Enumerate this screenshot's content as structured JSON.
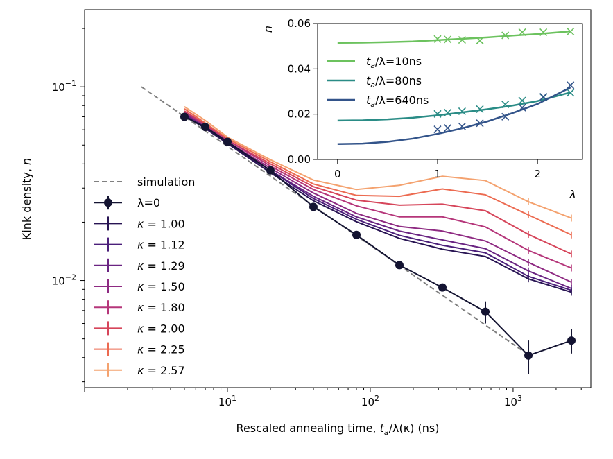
{
  "chart_data": [
    {
      "type": "line",
      "scale": {
        "x": "log",
        "y": "log"
      },
      "xlabel_main": "Rescaled annealing time, ",
      "xlabel_math": "t",
      "xlabel_sub": "a",
      "xlabel_rest": "/λ(κ) (ns)",
      "ylabel_main": "Kink density, ",
      "ylabel_math": "n",
      "xlim": [
        1.0,
        3500
      ],
      "ylim": [
        0.0028,
        0.25
      ],
      "x_ticks": [
        {
          "value": 10,
          "base": "10",
          "exp": "1"
        },
        {
          "value": 100,
          "base": "10",
          "exp": "2"
        },
        {
          "value": 1000,
          "base": "10",
          "exp": "3"
        }
      ],
      "y_ticks": [
        {
          "value": 0.01,
          "base": "10",
          "exp": "−2"
        },
        {
          "value": 0.1,
          "base": "10",
          "exp": "−1"
        }
      ],
      "legend_position": "lower-left",
      "legend": [
        {
          "key": "sim",
          "prefix": "simulation",
          "value": ""
        },
        {
          "key": "lambda0",
          "prefix": "λ=0",
          "value": ""
        },
        {
          "key": "k100",
          "prefix": "κ = ",
          "value": "1.00"
        },
        {
          "key": "k112",
          "prefix": "κ = ",
          "value": "1.12"
        },
        {
          "key": "k129",
          "prefix": "κ = ",
          "value": "1.29"
        },
        {
          "key": "k150",
          "prefix": "κ = ",
          "value": "1.50"
        },
        {
          "key": "k180",
          "prefix": "κ = ",
          "value": "1.80"
        },
        {
          "key": "k200",
          "prefix": "κ = ",
          "value": "2.00"
        },
        {
          "key": "k225",
          "prefix": "κ = ",
          "value": "2.25"
        },
        {
          "key": "k257",
          "prefix": "κ = ",
          "value": "2.57"
        }
      ],
      "series": [
        {
          "key": "sim",
          "style": "dashed",
          "color": "#808080",
          "x": [
            2.5,
            1300
          ],
          "y": [
            0.1,
            0.0041
          ]
        },
        {
          "key": "k257",
          "style": "solid",
          "color": "#f4a26f",
          "x": [
            5,
            7,
            10,
            20,
            40,
            80,
            160,
            320,
            640,
            1280,
            2560
          ],
          "y": [
            0.079,
            0.067,
            0.055,
            0.042,
            0.033,
            0.0295,
            0.031,
            0.0345,
            0.0328,
            0.0255,
            0.021
          ]
        },
        {
          "key": "k225",
          "style": "solid",
          "color": "#ec6a50",
          "x": [
            5,
            7,
            10,
            20,
            40,
            80,
            160,
            320,
            640,
            1280,
            2560
          ],
          "y": [
            0.077,
            0.065,
            0.054,
            0.041,
            0.0315,
            0.0275,
            0.0272,
            0.0297,
            0.0277,
            0.0218,
            0.0172
          ]
        },
        {
          "key": "k200",
          "style": "solid",
          "color": "#d6455a",
          "x": [
            5,
            7,
            10,
            20,
            40,
            80,
            160,
            320,
            640,
            1280,
            2560
          ],
          "y": [
            0.075,
            0.064,
            0.053,
            0.04,
            0.0305,
            0.026,
            0.0245,
            0.0248,
            0.0229,
            0.0173,
            0.0137
          ]
        },
        {
          "key": "k180",
          "style": "solid",
          "color": "#b5367a",
          "x": [
            5,
            7,
            10,
            20,
            40,
            80,
            160,
            320,
            640,
            1280,
            2560
          ],
          "y": [
            0.074,
            0.063,
            0.053,
            0.039,
            0.0295,
            0.0243,
            0.0213,
            0.0213,
            0.0189,
            0.0143,
            0.0116
          ]
        },
        {
          "key": "k150",
          "style": "solid",
          "color": "#8e2a82",
          "x": [
            5,
            7,
            10,
            20,
            40,
            80,
            160,
            320,
            640,
            1280,
            2560
          ],
          "y": [
            0.073,
            0.062,
            0.052,
            0.038,
            0.0283,
            0.0222,
            0.019,
            0.018,
            0.016,
            0.0124,
            0.0098
          ]
        },
        {
          "key": "k129",
          "style": "solid",
          "color": "#6a2482",
          "x": [
            5,
            7,
            10,
            20,
            40,
            80,
            160,
            320,
            640,
            1280,
            2560
          ],
          "y": [
            0.072,
            0.062,
            0.052,
            0.037,
            0.0272,
            0.0213,
            0.018,
            0.0162,
            0.0146,
            0.0112,
            0.0091
          ]
        },
        {
          "key": "k112",
          "style": "solid",
          "color": "#4b1f7a",
          "x": [
            5,
            7,
            10,
            20,
            40,
            80,
            160,
            320,
            640,
            1280,
            2560
          ],
          "y": [
            0.071,
            0.061,
            0.051,
            0.037,
            0.0265,
            0.0207,
            0.0171,
            0.0152,
            0.0139,
            0.0105,
            0.0089
          ]
        },
        {
          "key": "k100",
          "style": "solid",
          "color": "#281453",
          "x": [
            5,
            7,
            10,
            20,
            40,
            80,
            160,
            320,
            640,
            1280,
            2560
          ],
          "y": [
            0.071,
            0.061,
            0.051,
            0.036,
            0.0258,
            0.0201,
            0.0165,
            0.0145,
            0.0133,
            0.0102,
            0.0087
          ]
        },
        {
          "key": "lambda0",
          "style": "markers",
          "color": "#141432",
          "x": [
            5,
            7,
            10,
            20,
            40,
            80,
            160,
            320,
            640,
            1280,
            2560
          ],
          "y": [
            0.07,
            0.062,
            0.052,
            0.037,
            0.024,
            0.0172,
            0.012,
            0.0092,
            0.0069,
            0.0041,
            0.0049
          ],
          "err": [
            0.0012,
            0.001,
            0.0008,
            0.0006,
            0.0005,
            0.0004,
            0.0003,
            0.0003,
            0.0009,
            0.0008,
            0.0007
          ]
        }
      ]
    },
    {
      "type": "line",
      "role": "inset",
      "xlabel": "λ",
      "ylabel": "n",
      "xlim": [
        -0.2,
        2.45
      ],
      "ylim": [
        0.0,
        0.06
      ],
      "x_ticks": [
        "0",
        "1",
        "2"
      ],
      "x_tick_values": [
        0,
        1,
        2
      ],
      "y_ticks": [
        "0.00",
        "0.02",
        "0.04",
        "0.06"
      ],
      "y_tick_values": [
        0.0,
        0.02,
        0.04,
        0.06
      ],
      "legend_position": "upper-left",
      "legend": [
        {
          "key": "t10",
          "math": "t",
          "sub": "a",
          "rest": "/λ=10ns"
        },
        {
          "key": "t80",
          "math": "t",
          "sub": "a",
          "rest": "/λ=80ns"
        },
        {
          "key": "t640",
          "math": "t",
          "sub": "a",
          "rest": "/λ=640ns"
        }
      ],
      "series": [
        {
          "key": "t10",
          "color": "#6cc25e",
          "fit": {
            "x": [
              0,
              0.25,
              0.5,
              0.75,
              1.0,
              1.25,
              1.5,
              1.75,
              2.0,
              2.33
            ],
            "y": [
              0.0515,
              0.0516,
              0.0518,
              0.0521,
              0.0527,
              0.0533,
              0.0539,
              0.0547,
              0.0554,
              0.0566
            ]
          },
          "points": {
            "x": [
              1.0,
              1.12,
              1.29,
              1.5,
              1.8,
              2.0,
              2.25,
              2.57
            ],
            "y": [
              0.0532,
              0.053,
              0.0528,
              0.0525,
              0.0548,
              0.0562,
              0.0562,
              0.0565
            ]
          }
        },
        {
          "key": "t80",
          "color": "#2a8c86",
          "fit": {
            "x": [
              0,
              0.25,
              0.5,
              0.75,
              1.0,
              1.25,
              1.5,
              1.75,
              2.0,
              2.33
            ],
            "y": [
              0.0172,
              0.0173,
              0.0177,
              0.0184,
              0.0195,
              0.0208,
              0.0222,
              0.0238,
              0.0258,
              0.0296
            ]
          },
          "points": {
            "x": [
              1.0,
              1.12,
              1.29,
              1.5,
              1.8,
              2.0,
              2.25,
              2.57
            ],
            "y": [
              0.0201,
              0.0207,
              0.0213,
              0.0222,
              0.0243,
              0.026,
              0.0275,
              0.0295
            ]
          }
        },
        {
          "key": "t640",
          "color": "#33548a",
          "fit": {
            "x": [
              0,
              0.25,
              0.5,
              0.75,
              1.0,
              1.25,
              1.5,
              1.75,
              2.0,
              2.33
            ],
            "y": [
              0.0068,
              0.007,
              0.0078,
              0.0092,
              0.0113,
              0.0138,
              0.0168,
              0.0205,
              0.0245,
              0.0318
            ]
          },
          "points": {
            "x": [
              1.0,
              1.12,
              1.29,
              1.5,
              1.8,
              2.0,
              2.25,
              2.57
            ],
            "y": [
              0.0133,
              0.0139,
              0.0146,
              0.016,
              0.0189,
              0.0229,
              0.0277,
              0.0328
            ]
          }
        }
      ]
    }
  ]
}
